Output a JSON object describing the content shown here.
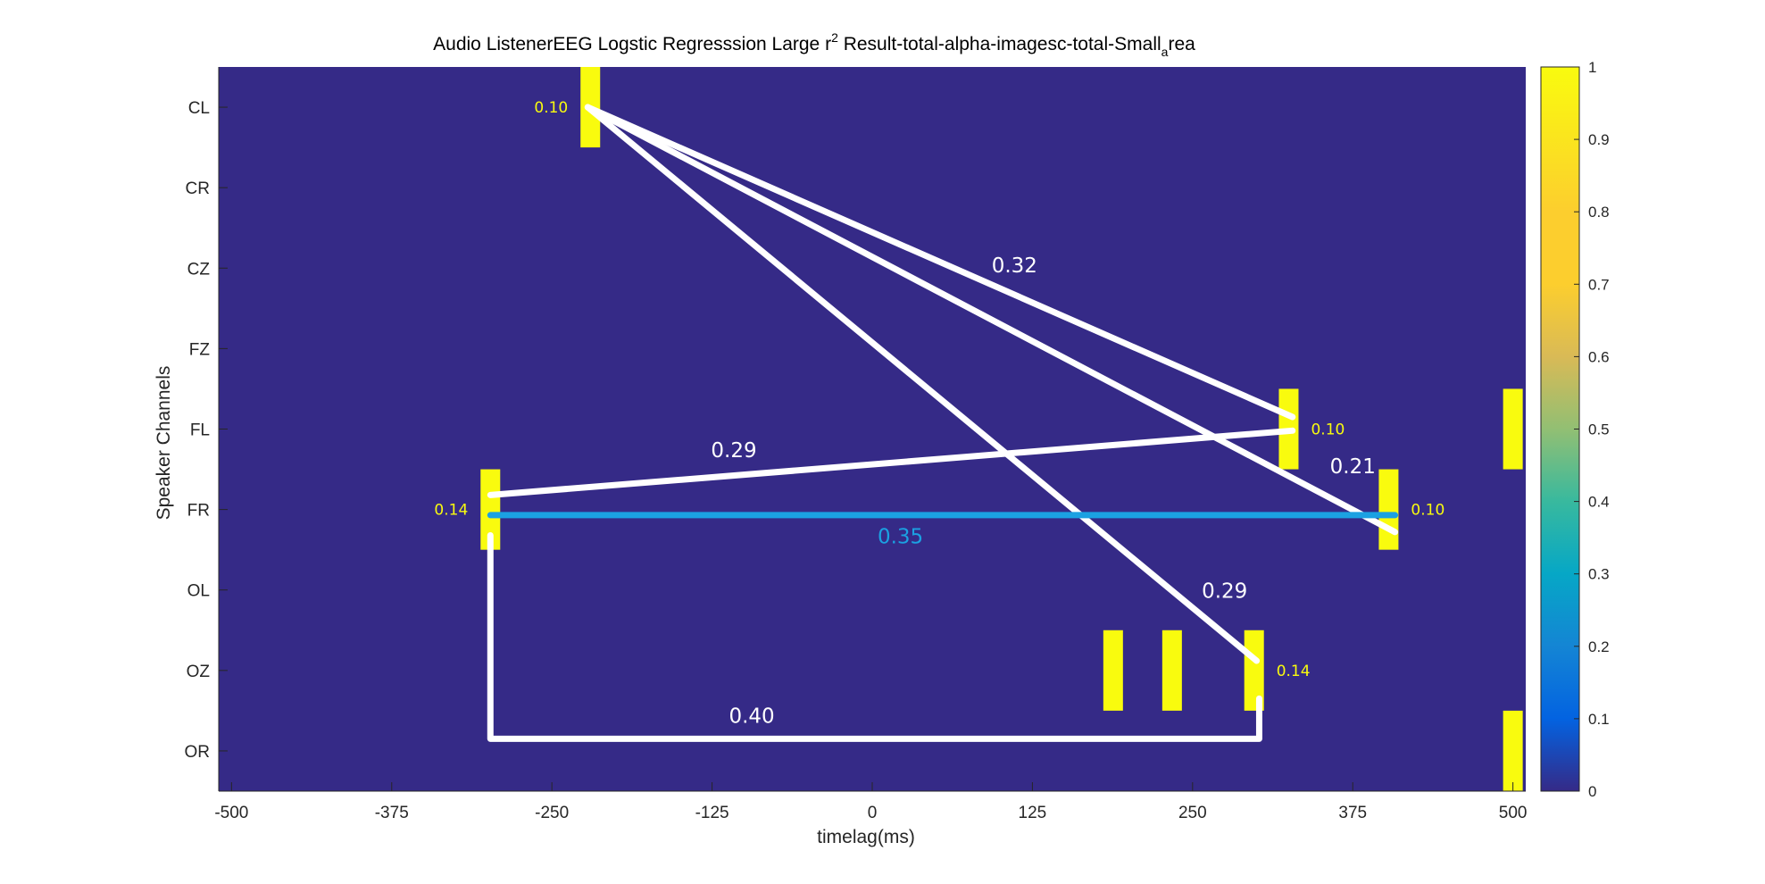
{
  "chart_data": {
    "type": "heatmap",
    "title": "Audio ListenerEEG Logstic Regresssion Large r",
    "title_sup": "2",
    "title_rest": " Result-total-alpha-imagesc-total-Small",
    "title_sub": "a",
    "title_end": "rea",
    "xlabel": "timelag(ms)",
    "ylabel": "Speaker Channels",
    "xlim": [
      -510,
      510
    ],
    "xticks": [
      -500,
      -375,
      -250,
      -125,
      0,
      125,
      250,
      375,
      500
    ],
    "channels": [
      "CL",
      "CR",
      "CZ",
      "FZ",
      "FL",
      "FR",
      "OL",
      "OZ",
      "OR"
    ],
    "background_value": 0,
    "cells": [
      {
        "x": -220,
        "channel": "CL",
        "value": 1
      },
      {
        "x": 325,
        "channel": "FL",
        "value": 1
      },
      {
        "x": 500,
        "channel": "FL",
        "value": 1
      },
      {
        "x": -298,
        "channel": "FR",
        "value": 1
      },
      {
        "x": 403,
        "channel": "FR",
        "value": 1
      },
      {
        "x": 188,
        "channel": "OZ",
        "value": 1
      },
      {
        "x": 234,
        "channel": "OZ",
        "value": 1
      },
      {
        "x": 298,
        "channel": "OZ",
        "value": 1
      },
      {
        "x": 500,
        "channel": "OR",
        "value": 1
      }
    ],
    "cell_labels": [
      {
        "text": "0.10",
        "x": -220,
        "channel": "CL",
        "side": "left"
      },
      {
        "text": "0.10",
        "x": 325,
        "channel": "FL",
        "side": "right"
      },
      {
        "text": "0.14",
        "x": -298,
        "channel": "FR",
        "side": "left"
      },
      {
        "text": "0.10",
        "x": 403,
        "channel": "FR",
        "side": "right"
      },
      {
        "text": "0.14",
        "x": 298,
        "channel": "OZ",
        "side": "right"
      }
    ],
    "connections": [
      {
        "label": "0.32",
        "color": "#ffffff",
        "points": [
          [
            -222,
            0.0
          ],
          [
            328,
            3.85
          ]
        ],
        "label_at": [
          111,
          2.05
        ]
      },
      {
        "label": "0.21",
        "color": "#ffffff",
        "points": [
          [
            -222,
            0.0
          ],
          [
            408,
            5.28
          ]
        ],
        "label_at": [
          375,
          4.55
        ]
      },
      {
        "label": "0.29",
        "color": "#ffffff",
        "points": [
          [
            -222,
            0.0
          ],
          [
            300,
            6.88
          ]
        ],
        "label_at": [
          275,
          6.1
        ]
      },
      {
        "label": "0.29",
        "color": "#ffffff",
        "points": [
          [
            -298,
            4.82
          ],
          [
            328,
            4.02
          ]
        ],
        "label_at": [
          -108,
          4.35
        ]
      },
      {
        "label": "0.35",
        "color": "#1ba1e2",
        "points": [
          [
            -298,
            5.07
          ],
          [
            408,
            5.07
          ]
        ],
        "label_at": [
          22,
          5.42
        ]
      },
      {
        "label": "0.40",
        "color": "#ffffff",
        "points": [
          [
            -298,
            5.32
          ],
          [
            -298,
            7.85
          ],
          [
            302,
            7.85
          ],
          [
            302,
            7.35
          ]
        ],
        "label_at": [
          -94,
          7.65
        ]
      }
    ],
    "colorbar": {
      "ticks": [
        0,
        0.1,
        0.2,
        0.3,
        0.4,
        0.5,
        0.6,
        0.7,
        0.8,
        0.9,
        1
      ],
      "tick_labels": [
        "0",
        "0.1",
        "0.2",
        "0.3",
        "0.4",
        "0.5",
        "0.6",
        "0.7",
        "0.8",
        "0.9",
        "1"
      ],
      "colormap": "parula",
      "background_color": "#352a87",
      "cell_color": "#f9fb0e",
      "label_color_small": "#f9fb0e"
    }
  }
}
